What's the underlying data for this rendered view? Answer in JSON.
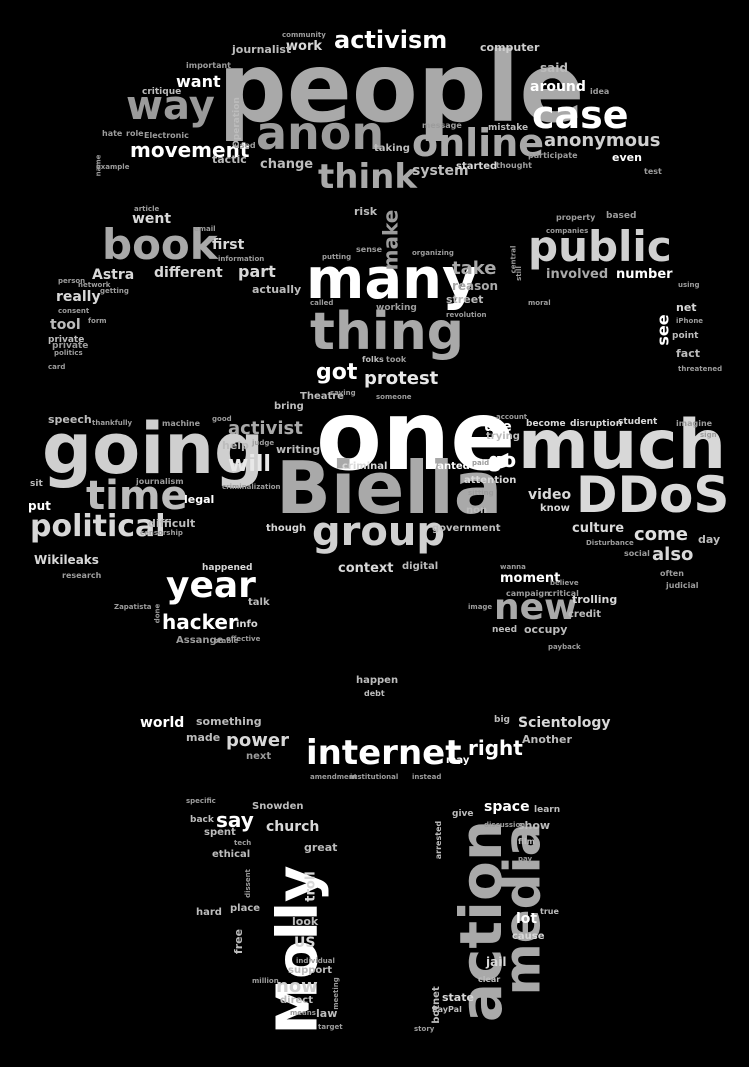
{
  "words": [
    {
      "text": "people",
      "color": "#a9a9a9"
    },
    {
      "text": "one",
      "color": "#ffffff"
    },
    {
      "text": "Biella",
      "color": "#a9a9a9"
    },
    {
      "text": "going",
      "color": "#cfcfcf"
    },
    {
      "text": "much",
      "color": "#d8d8d8"
    },
    {
      "text": "many",
      "color": "#ffffff"
    },
    {
      "text": "thing",
      "color": "#a9a9a9"
    },
    {
      "text": "DDoS",
      "color": "#d9d9d9"
    },
    {
      "text": "anon",
      "color": "#9c9c9c"
    },
    {
      "text": "book",
      "color": "#a9a9a9"
    },
    {
      "text": "public",
      "color": "#d0d0d0"
    },
    {
      "text": "group",
      "color": "#d0d0d0"
    },
    {
      "text": "time",
      "color": "#bcbcbc"
    },
    {
      "text": "way",
      "color": "#9a9a9a"
    },
    {
      "text": "online",
      "color": "#a9a9a9"
    },
    {
      "text": "case",
      "color": "#ffffff"
    },
    {
      "text": "think",
      "color": "#a9a9a9"
    },
    {
      "text": "political",
      "color": "#d8d8d8"
    },
    {
      "text": "year",
      "color": "#ffffff"
    },
    {
      "text": "new",
      "color": "#a9a9a9"
    },
    {
      "text": "internet",
      "color": "#ffffff"
    },
    {
      "text": "action",
      "color": "#a9a9a9"
    },
    {
      "text": "media",
      "color": "#a9a9a9"
    },
    {
      "text": "Molly",
      "color": "#ffffff"
    },
    {
      "text": "activism",
      "color": "#ffffff"
    },
    {
      "text": "movement",
      "color": "#ffffff"
    },
    {
      "text": "anonymous",
      "color": "#cfcfcf"
    },
    {
      "text": "hacker",
      "color": "#ffffff"
    },
    {
      "text": "will",
      "color": "#e8e8e8"
    },
    {
      "text": "protest",
      "color": "#e8e8e8"
    },
    {
      "text": "activist",
      "color": "#a9a9a9"
    },
    {
      "text": "got",
      "color": "#ffffff"
    },
    {
      "text": "take",
      "color": "#a9a9a9"
    },
    {
      "text": "come",
      "color": "#e0e0e0"
    },
    {
      "text": "also",
      "color": "#d8d8d8"
    },
    {
      "text": "right",
      "color": "#ffffff"
    },
    {
      "text": "power",
      "color": "#d8d8d8"
    },
    {
      "text": "say",
      "color": "#ffffff"
    },
    {
      "text": "now",
      "color": "#cfcfcf"
    },
    {
      "text": "use",
      "color": "#ffffff"
    },
    {
      "text": "go",
      "color": "#ffffff"
    },
    {
      "text": "video",
      "color": "#d8d8d8"
    },
    {
      "text": "make",
      "color": "#9c9c9c"
    },
    {
      "text": "want",
      "color": "#ffffff"
    },
    {
      "text": "around",
      "color": "#ffffff"
    },
    {
      "text": "computer",
      "color": "#cfcfcf"
    },
    {
      "text": "work",
      "color": "#d8d8d8"
    },
    {
      "text": "journalist",
      "color": "#bcbcbc"
    },
    {
      "text": "said",
      "color": "#bcbcbc"
    },
    {
      "text": "change",
      "color": "#bcbcbc"
    },
    {
      "text": "even",
      "color": "#ffffff"
    },
    {
      "text": "system",
      "color": "#bcbcbc"
    },
    {
      "text": "first",
      "color": "#d8d8d8"
    },
    {
      "text": "went",
      "color": "#d8d8d8"
    },
    {
      "text": "Astra",
      "color": "#d8d8d8"
    },
    {
      "text": "different",
      "color": "#d8d8d8"
    },
    {
      "text": "part",
      "color": "#d8d8d8"
    },
    {
      "text": "really",
      "color": "#d8d8d8"
    },
    {
      "text": "tool",
      "color": "#bcbcbc"
    },
    {
      "text": "involved",
      "color": "#a9a9a9"
    },
    {
      "text": "number",
      "color": "#ffffff"
    },
    {
      "text": "reason",
      "color": "#a9a9a9"
    },
    {
      "text": "street",
      "color": "#bcbcbc"
    },
    {
      "text": "actually",
      "color": "#bcbcbc"
    },
    {
      "text": "see",
      "color": "#ffffff"
    },
    {
      "text": "net",
      "color": "#d8d8d8"
    },
    {
      "text": "point",
      "color": "#bcbcbc"
    },
    {
      "text": "fact",
      "color": "#bcbcbc"
    },
    {
      "text": "private",
      "color": "#bcbcbc"
    },
    {
      "text": "writing",
      "color": "#bcbcbc"
    },
    {
      "text": "help",
      "color": "#bcbcbc"
    },
    {
      "text": "bring",
      "color": "#bcbcbc"
    },
    {
      "text": "criminal",
      "color": "#d8d8d8"
    },
    {
      "text": "wanted",
      "color": "#ffffff"
    },
    {
      "text": "trying",
      "color": "#bcbcbc"
    },
    {
      "text": "attention",
      "color": "#d8d8d8"
    },
    {
      "text": "know",
      "color": "#d8d8d8"
    },
    {
      "text": "culture",
      "color": "#d8d8d8"
    },
    {
      "text": "student",
      "color": "#d8d8d8"
    },
    {
      "text": "become",
      "color": "#d8d8d8"
    },
    {
      "text": "disruption",
      "color": "#d8d8d8"
    },
    {
      "text": "day",
      "color": "#bcbcbc"
    },
    {
      "text": "speech",
      "color": "#bcbcbc"
    },
    {
      "text": "put",
      "color": "#ffffff"
    },
    {
      "text": "sit",
      "color": "#bcbcbc"
    },
    {
      "text": "legal",
      "color": "#ffffff"
    },
    {
      "text": "difficult",
      "color": "#bcbcbc"
    },
    {
      "text": "Wikileaks",
      "color": "#d8d8d8"
    },
    {
      "text": "though",
      "color": "#d8d8d8"
    },
    {
      "text": "government",
      "color": "#bcbcbc"
    },
    {
      "text": "context",
      "color": "#d8d8d8"
    },
    {
      "text": "digital",
      "color": "#bcbcbc"
    },
    {
      "text": "moment",
      "color": "#ffffff"
    },
    {
      "text": "trolling",
      "color": "#d8d8d8"
    },
    {
      "text": "credit",
      "color": "#bcbcbc"
    },
    {
      "text": "occupy",
      "color": "#bcbcbc"
    },
    {
      "text": "need",
      "color": "#bcbcbc"
    },
    {
      "text": "happened",
      "color": "#d8d8d8"
    },
    {
      "text": "talk",
      "color": "#bcbcbc"
    },
    {
      "text": "info",
      "color": "#d8d8d8"
    },
    {
      "text": "Assange",
      "color": "#9c9c9c"
    },
    {
      "text": "happen",
      "color": "#bcbcbc"
    },
    {
      "text": "debt",
      "color": "#bcbcbc"
    },
    {
      "text": "world",
      "color": "#ffffff"
    },
    {
      "text": "something",
      "color": "#bcbcbc"
    },
    {
      "text": "made",
      "color": "#bcbcbc"
    },
    {
      "text": "next",
      "color": "#9c9c9c"
    },
    {
      "text": "Scientology",
      "color": "#d8d8d8"
    },
    {
      "text": "Another",
      "color": "#bcbcbc"
    },
    {
      "text": "big",
      "color": "#bcbcbc"
    },
    {
      "text": "may",
      "color": "#ffffff"
    },
    {
      "text": "space",
      "color": "#ffffff"
    },
    {
      "text": "show",
      "color": "#bcbcbc"
    },
    {
      "text": "church",
      "color": "#d8d8d8"
    },
    {
      "text": "Snowden",
      "color": "#bcbcbc"
    },
    {
      "text": "ethical",
      "color": "#bcbcbc"
    },
    {
      "text": "spent",
      "color": "#bcbcbc"
    },
    {
      "text": "great",
      "color": "#bcbcbc"
    },
    {
      "text": "troll",
      "color": "#d8d8d8"
    },
    {
      "text": "look",
      "color": "#bcbcbc"
    },
    {
      "text": "US",
      "color": "#d8d8d8"
    },
    {
      "text": "hard",
      "color": "#bcbcbc"
    },
    {
      "text": "place",
      "color": "#bcbcbc"
    },
    {
      "text": "free",
      "color": "#bcbcbc"
    },
    {
      "text": "support",
      "color": "#bcbcbc"
    },
    {
      "text": "direct",
      "color": "#bcbcbc"
    },
    {
      "text": "law",
      "color": "#bcbcbc"
    },
    {
      "text": "lot",
      "color": "#ffffff"
    },
    {
      "text": "jail",
      "color": "#d8d8d8"
    },
    {
      "text": "cause",
      "color": "#d8d8d8"
    },
    {
      "text": "state",
      "color": "#d8d8d8"
    },
    {
      "text": "clear",
      "color": "#bcbcbc"
    },
    {
      "text": "botnet",
      "color": "#bcbcbc"
    },
    {
      "text": "PayPal",
      "color": "#bcbcbc"
    },
    {
      "text": "arrested",
      "color": "#bcbcbc"
    },
    {
      "text": "true",
      "color": "#bcbcbc"
    },
    {
      "text": "film",
      "color": "#bcbcbc"
    },
    {
      "text": "tactic",
      "color": "#bcbcbc"
    },
    {
      "text": "risk",
      "color": "#bcbcbc"
    },
    {
      "text": "taking",
      "color": "#bcbcbc"
    },
    {
      "text": "started",
      "color": "#d8d8d8"
    },
    {
      "text": "idea",
      "color": "#9c9c9c"
    },
    {
      "text": "mistake",
      "color": "#bcbcbc"
    },
    {
      "text": "message",
      "color": "#9c9c9c"
    },
    {
      "text": "participate",
      "color": "#9c9c9c"
    },
    {
      "text": "test",
      "color": "#9c9c9c"
    },
    {
      "text": "critique",
      "color": "#bcbcbc"
    },
    {
      "text": "important",
      "color": "#9c9c9c"
    },
    {
      "text": "Operation",
      "color": "#bcbcbc"
    },
    {
      "text": "Electronic",
      "color": "#9c9c9c"
    },
    {
      "text": "role",
      "color": "#9c9c9c"
    },
    {
      "text": "hate",
      "color": "#9c9c9c"
    },
    {
      "text": "used",
      "color": "#9c9c9c"
    },
    {
      "text": "community",
      "color": "#9c9c9c"
    },
    {
      "text": "thought",
      "color": "#9c9c9c"
    },
    {
      "text": "property",
      "color": "#9c9c9c"
    },
    {
      "text": "based",
      "color": "#9c9c9c"
    },
    {
      "text": "companies",
      "color": "#9c9c9c"
    },
    {
      "text": "Theatre",
      "color": "#bcbcbc"
    },
    {
      "text": "machine",
      "color": "#9c9c9c"
    },
    {
      "text": "journalism",
      "color": "#9c9c9c"
    },
    {
      "text": "research",
      "color": "#9c9c9c"
    },
    {
      "text": "social",
      "color": "#9c9c9c"
    },
    {
      "text": "judicial",
      "color": "#9c9c9c"
    },
    {
      "text": "threatened",
      "color": "#9c9c9c"
    },
    {
      "text": "imagine",
      "color": "#9c9c9c"
    },
    {
      "text": "often",
      "color": "#9c9c9c"
    },
    {
      "text": "organizing",
      "color": "#9c9c9c"
    },
    {
      "text": "revolution",
      "color": "#9c9c9c"
    },
    {
      "text": "sense",
      "color": "#9c9c9c"
    },
    {
      "text": "folks",
      "color": "#bcbcbc"
    },
    {
      "text": "took",
      "color": "#9c9c9c"
    },
    {
      "text": "working",
      "color": "#9c9c9c"
    },
    {
      "text": "saying",
      "color": "#9c9c9c"
    },
    {
      "text": "account",
      "color": "#9c9c9c"
    },
    {
      "text": "campaign",
      "color": "#9c9c9c"
    },
    {
      "text": "critical",
      "color": "#9c9c9c"
    },
    {
      "text": "payback",
      "color": "#9c9c9c"
    },
    {
      "text": "amendment",
      "color": "#9c9c9c"
    },
    {
      "text": "institutional",
      "color": "#9c9c9c"
    },
    {
      "text": "instead",
      "color": "#9c9c9c"
    },
    {
      "text": "specific",
      "color": "#9c9c9c"
    },
    {
      "text": "back",
      "color": "#bcbcbc"
    },
    {
      "text": "tech",
      "color": "#9c9c9c"
    },
    {
      "text": "dissent",
      "color": "#9c9c9c"
    },
    {
      "text": "individual",
      "color": "#9c9c9c"
    },
    {
      "text": "million",
      "color": "#9c9c9c"
    },
    {
      "text": "means",
      "color": "#9c9c9c"
    },
    {
      "text": "target",
      "color": "#9c9c9c"
    },
    {
      "text": "story",
      "color": "#9c9c9c"
    },
    {
      "text": "give",
      "color": "#bcbcbc"
    },
    {
      "text": "learn",
      "color": "#bcbcbc"
    },
    {
      "text": "discussion",
      "color": "#9c9c9c"
    },
    {
      "text": "pay",
      "color": "#9c9c9c"
    },
    {
      "text": "meeting",
      "color": "#9c9c9c"
    },
    {
      "text": "stable",
      "color": "#9c9c9c"
    },
    {
      "text": "effective",
      "color": "#9c9c9c"
    },
    {
      "text": "done",
      "color": "#9c9c9c"
    },
    {
      "text": "Zapatista",
      "color": "#9c9c9c"
    },
    {
      "text": "censorship",
      "color": "#9c9c9c"
    },
    {
      "text": "criminalization",
      "color": "#9c9c9c"
    },
    {
      "text": "judge",
      "color": "#9c9c9c"
    },
    {
      "text": "good",
      "color": "#9c9c9c"
    },
    {
      "text": "thankfully",
      "color": "#9c9c9c"
    },
    {
      "text": "Disturbance",
      "color": "#9c9c9c"
    },
    {
      "text": "sign",
      "color": "#9c9c9c"
    },
    {
      "text": "email",
      "color": "#9c9c9c"
    },
    {
      "text": "information",
      "color": "#9c9c9c"
    },
    {
      "text": "network",
      "color": "#9c9c9c"
    },
    {
      "text": "person",
      "color": "#9c9c9c"
    },
    {
      "text": "consent",
      "color": "#9c9c9c"
    },
    {
      "text": "politics",
      "color": "#9c9c9c"
    },
    {
      "text": "card",
      "color": "#9c9c9c"
    },
    {
      "text": "getting",
      "color": "#9c9c9c"
    },
    {
      "text": "form",
      "color": "#9c9c9c"
    },
    {
      "text": "example",
      "color": "#9c9c9c"
    },
    {
      "text": "name",
      "color": "#9c9c9c"
    },
    {
      "text": "article",
      "color": "#9c9c9c"
    },
    {
      "text": "using",
      "color": "#9c9c9c"
    },
    {
      "text": "iPhone",
      "color": "#9c9c9c"
    },
    {
      "text": "still",
      "color": "#9c9c9c"
    },
    {
      "text": "central",
      "color": "#9c9c9c"
    },
    {
      "text": "moral",
      "color": "#9c9c9c"
    },
    {
      "text": "called",
      "color": "#9c9c9c"
    },
    {
      "text": "putting",
      "color": "#9c9c9c"
    },
    {
      "text": "someone",
      "color": "#9c9c9c"
    },
    {
      "text": "wanna",
      "color": "#9c9c9c"
    },
    {
      "text": "believe",
      "color": "#9c9c9c"
    },
    {
      "text": "image",
      "color": "#9c9c9c"
    },
    {
      "text": "sitting",
      "color": "#9c9c9c"
    },
    {
      "text": "non",
      "color": "#bcbcbc"
    },
    {
      "text": "paid",
      "color": "#9c9c9c"
    },
    {
      "text": "private",
      "color": "#9c9c9c"
    }
  ]
}
